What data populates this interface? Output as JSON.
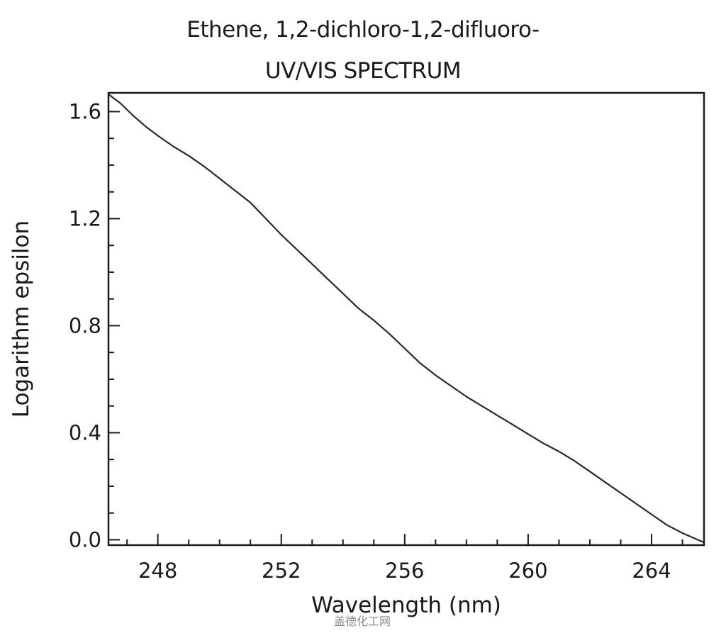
{
  "chart_data": {
    "type": "line",
    "title": "Ethene, 1,2-dichloro-1,2-difluoro-",
    "subtitle": "UV/VIS SPECTRUM",
    "xlabel": "Wavelength (nm)",
    "ylabel": "Logarithm epsilon",
    "xlim": [
      246.4,
      265.7
    ],
    "ylim": [
      -0.02,
      1.67
    ],
    "x_ticks": [
      248,
      252,
      256,
      260,
      264
    ],
    "x_tick_labels": [
      "248",
      "252",
      "256",
      "260",
      "264"
    ],
    "y_ticks": [
      0.0,
      0.4,
      0.8,
      1.2,
      1.6
    ],
    "y_tick_labels": [
      "0.0",
      "0.4",
      "0.8",
      "1.2",
      "1.6"
    ],
    "grid": false,
    "series": [
      {
        "color": "#2a2a2a",
        "x": [
          246.4,
          246.8,
          247.2,
          247.6,
          248.0,
          248.5,
          249.0,
          249.5,
          250.0,
          250.5,
          251.0,
          251.5,
          252.0,
          252.5,
          253.0,
          253.5,
          254.0,
          254.5,
          255.0,
          255.5,
          256.0,
          256.5,
          257.0,
          257.5,
          258.0,
          258.5,
          259.0,
          259.5,
          260.0,
          260.5,
          261.0,
          261.5,
          262.0,
          262.5,
          263.0,
          263.5,
          264.0,
          264.5,
          265.0,
          265.7
        ],
        "y": [
          1.665,
          1.63,
          1.585,
          1.545,
          1.51,
          1.47,
          1.435,
          1.395,
          1.35,
          1.305,
          1.26,
          1.2,
          1.14,
          1.085,
          1.03,
          0.975,
          0.92,
          0.865,
          0.82,
          0.77,
          0.715,
          0.66,
          0.615,
          0.575,
          0.535,
          0.5,
          0.465,
          0.43,
          0.395,
          0.36,
          0.33,
          0.295,
          0.255,
          0.215,
          0.175,
          0.135,
          0.095,
          0.055,
          0.025,
          -0.01
        ]
      }
    ]
  },
  "watermark": "盖德化工网"
}
